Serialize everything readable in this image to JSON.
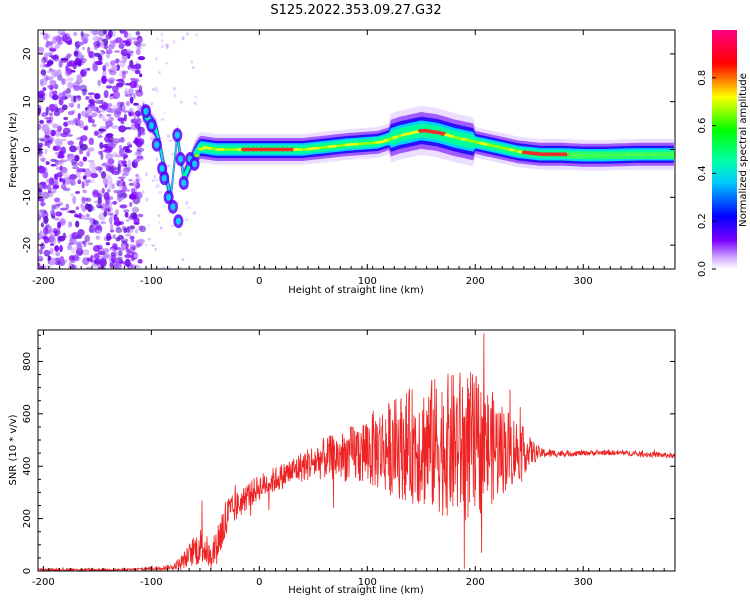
{
  "title": "S125.2022.353.09.27.G32",
  "chart_data": [
    {
      "type": "heatmap",
      "xlabel": "Height of straight line (km)",
      "ylabel": "Frequency (Hz)",
      "xlim": [
        -205,
        385
      ],
      "ylim": [
        -25,
        25
      ],
      "xticks": [
        -200,
        -100,
        0,
        100,
        200,
        300
      ],
      "yticks": [
        -20,
        -10,
        0,
        10,
        20
      ],
      "colorbar": {
        "label": "Normalized spectral amplitude",
        "range": [
          0,
          1
        ],
        "ticks": [
          "0.0",
          "0.2",
          "0.4",
          "0.6",
          "0.8"
        ],
        "colors": [
          "#ffffff",
          "#7b00ff",
          "#0000ff",
          "#00ffff",
          "#00ff00",
          "#ffff00",
          "#ff0000",
          "#ff0080"
        ]
      },
      "ridge": {
        "x": [
          -108,
          -95,
          -88,
          -82,
          -76,
          -70,
          -62,
          -55,
          -40,
          -20,
          0,
          40,
          80,
          110,
          130,
          150,
          165,
          180,
          200,
          220,
          240,
          260,
          280,
          300,
          320,
          350,
          385
        ],
        "y": [
          8,
          4,
          -4,
          -10,
          3,
          -6,
          -2,
          0.5,
          0,
          0,
          0,
          0,
          1,
          1.5,
          3,
          4,
          3.5,
          2.5,
          1.5,
          0.5,
          -0.5,
          -1,
          -1,
          -1.2,
          -1.2,
          -1,
          -1
        ]
      }
    },
    {
      "type": "line",
      "xlabel": "Height of straight line (km)",
      "ylabel": "SNR (10 * v/v)",
      "xlim": [
        -205,
        385
      ],
      "ylim": [
        0,
        920
      ],
      "xticks": [
        -200,
        -100,
        0,
        100,
        200,
        300
      ],
      "yticks": [
        0,
        200,
        400,
        600,
        800
      ],
      "color": "#ee2222",
      "envelope": {
        "x": [
          -205,
          -120,
          -80,
          -70,
          -60,
          -52,
          -45,
          -35,
          -30,
          -25,
          -10,
          0,
          20,
          40,
          60,
          80,
          100,
          120,
          140,
          160,
          180,
          190,
          200,
          220,
          240,
          250,
          260,
          280,
          300,
          320,
          340,
          360,
          385
        ],
        "y": [
          5,
          5,
          15,
          40,
          80,
          100,
          50,
          150,
          200,
          230,
          290,
          320,
          360,
          400,
          430,
          440,
          460,
          470,
          480,
          480,
          480,
          480,
          475,
          470,
          460,
          455,
          450,
          448,
          450,
          452,
          450,
          445,
          440
        ],
        "amplitude": [
          4,
          4,
          10,
          30,
          60,
          80,
          40,
          90,
          100,
          60,
          50,
          50,
          50,
          60,
          80,
          100,
          140,
          180,
          220,
          260,
          280,
          300,
          280,
          200,
          120,
          60,
          20,
          12,
          10,
          10,
          10,
          10,
          10
        ]
      }
    }
  ]
}
